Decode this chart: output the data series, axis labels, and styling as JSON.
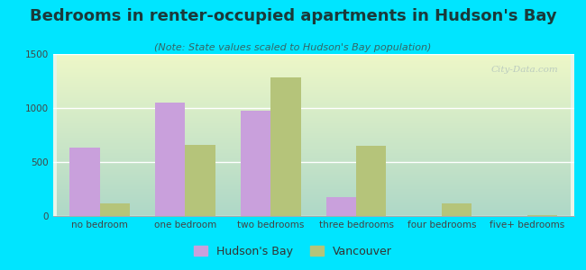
{
  "title": "Bedrooms in renter-occupied apartments in Hudson's Bay",
  "subtitle": "(Note: State values scaled to Hudson's Bay population)",
  "categories": [
    "no bedroom",
    "one bedroom",
    "two bedrooms",
    "three bedrooms",
    "four bedrooms",
    "five+ bedrooms"
  ],
  "hudson_bay_values": [
    630,
    1050,
    975,
    175,
    0,
    0
  ],
  "vancouver_values": [
    120,
    655,
    1285,
    650,
    120,
    10
  ],
  "hudson_bay_color": "#c9a0dc",
  "vancouver_color": "#b5c47a",
  "bg_color": "#00e5ff",
  "ylim": [
    0,
    1500
  ],
  "yticks": [
    0,
    500,
    1000,
    1500
  ],
  "title_fontsize": 13,
  "subtitle_fontsize": 8,
  "tick_fontsize": 7.5,
  "legend_fontsize": 9,
  "watermark_text": "City-Data.com",
  "bar_width": 0.35
}
